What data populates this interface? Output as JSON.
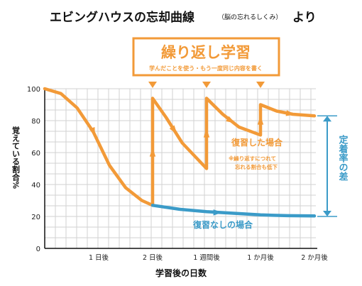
{
  "page_title": "エビングハウスの忘却曲線",
  "page_title_paren": "（脳の忘れるしくみ）",
  "page_title_suffix": "より",
  "callout": {
    "title": "繰り返し学習",
    "subtitle": "学んだことを使う・もう一度同じ内容を書く"
  },
  "colors": {
    "orange": "#f29a38",
    "blue": "#3b9bc8",
    "axis": "#111111",
    "grid": "#d2d2d2"
  },
  "chart_data": {
    "type": "line",
    "xlabel": "学習後の日数",
    "ylabel": "覚えている割合%",
    "x_ticks": [
      "1 日後",
      "2 日後",
      "1 週間後",
      "1 か月後",
      "2 か月後"
    ],
    "ylim": [
      0,
      100
    ],
    "y_ticks": [
      0,
      20,
      40,
      60,
      80,
      100
    ],
    "grid": true,
    "note": "x positions use the tick order index (0 = learning time, 1 = 1日後, 2 = 2日後, 3 = 1週間後, 4 = 1か月後, 5 = 2か月後)",
    "series": [
      {
        "name": "復習した場合",
        "color": "#f29a38",
        "points": [
          [
            0,
            100
          ],
          [
            0.3,
            97
          ],
          [
            0.6,
            88
          ],
          [
            0.9,
            73
          ],
          [
            1.2,
            52
          ],
          [
            1.5,
            38
          ],
          [
            1.8,
            30
          ],
          [
            2.0,
            27
          ],
          [
            2.0,
            94
          ],
          [
            2.25,
            82
          ],
          [
            2.55,
            66
          ],
          [
            3.0,
            50
          ],
          [
            3.0,
            94
          ],
          [
            3.3,
            84
          ],
          [
            3.6,
            76
          ],
          [
            4.0,
            71
          ],
          [
            4.0,
            90
          ],
          [
            4.3,
            86
          ],
          [
            4.6,
            84
          ],
          [
            5.0,
            83
          ]
        ]
      },
      {
        "name": "復習なしの場合",
        "color": "#3b9bc8",
        "points": [
          [
            2.0,
            27
          ],
          [
            2.5,
            24.5
          ],
          [
            3.0,
            23
          ],
          [
            3.5,
            22
          ],
          [
            4.0,
            21
          ],
          [
            4.5,
            20.5
          ],
          [
            5.0,
            20.3
          ]
        ]
      }
    ],
    "review_markers_x": [
      2,
      3,
      4
    ],
    "annotations": {
      "reviewed_note_line1": "※繰り返すにつれて",
      "reviewed_note_line2": "忘れる割合も低下"
    },
    "side_band": {
      "label": "定着率の差",
      "from": 20,
      "to": 83
    }
  }
}
